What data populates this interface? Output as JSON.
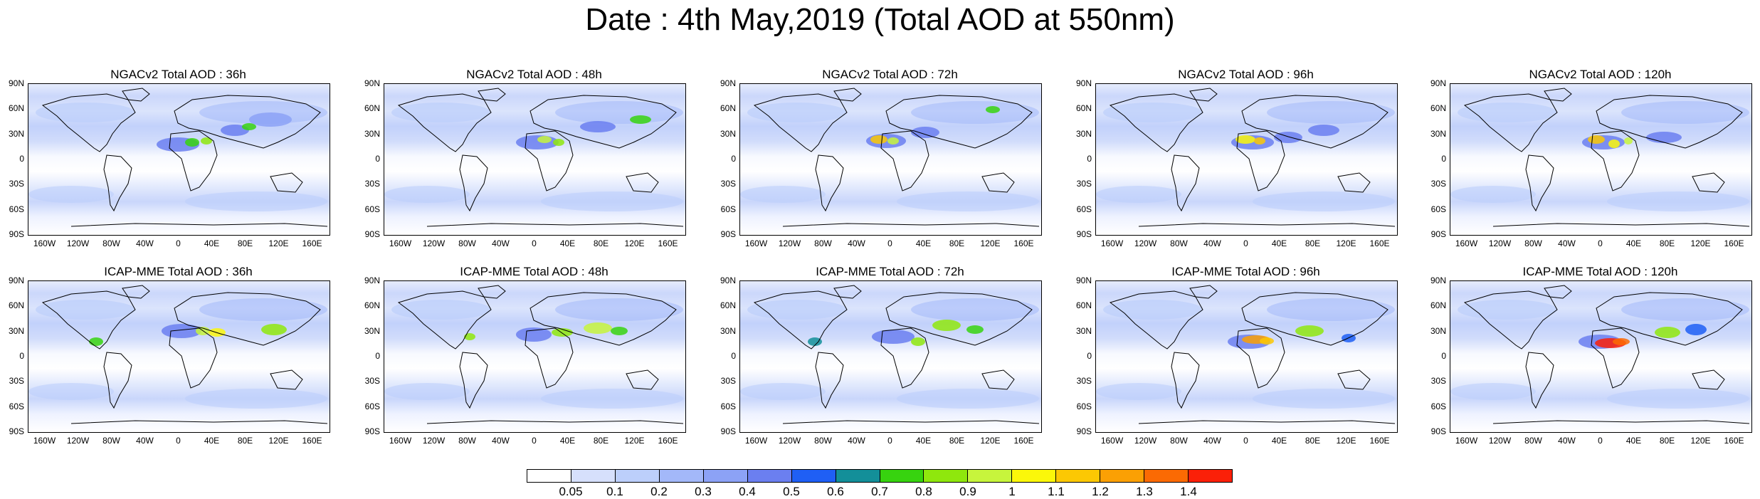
{
  "title": "Date : 4th May,2019 (Total AOD at 550nm)",
  "panels": [
    {
      "title": "NGACv2 Total AOD : 36h"
    },
    {
      "title": "NGACv2 Total AOD : 48h"
    },
    {
      "title": "NGACv2 Total AOD : 72h"
    },
    {
      "title": "NGACv2 Total AOD : 96h"
    },
    {
      "title": "NGACv2 Total AOD : 120h"
    },
    {
      "title": "ICAP-MME Total AOD : 36h"
    },
    {
      "title": "ICAP-MME Total AOD : 48h"
    },
    {
      "title": "ICAP-MME Total AOD : 72h"
    },
    {
      "title": "ICAP-MME Total AOD : 96h"
    },
    {
      "title": "ICAP-MME Total AOD : 120h"
    }
  ],
  "lat_ticks": [
    "90N",
    "60N",
    "30N",
    "0",
    "30S",
    "60S",
    "90S"
  ],
  "lon_ticks": [
    "160W",
    "120W",
    "80W",
    "40W",
    "0",
    "40E",
    "80E",
    "120E",
    "160E"
  ],
  "colorbar": {
    "labels": [
      "0.05",
      "0.1",
      "0.2",
      "0.3",
      "0.4",
      "0.5",
      "0.6",
      "0.7",
      "0.8",
      "0.9",
      "1",
      "1.1",
      "1.2",
      "1.3",
      "1.4"
    ],
    "colors": [
      "#ffffff",
      "#d6e0fc",
      "#bccffb",
      "#a3b8f9",
      "#8ca2f6",
      "#6b7ff0",
      "#1f5ff5",
      "#138f99",
      "#37d30f",
      "#8fe70d",
      "#c7f53c",
      "#fbf70a",
      "#fcc803",
      "#fba004",
      "#fb6a03",
      "#fb2008"
    ]
  }
}
